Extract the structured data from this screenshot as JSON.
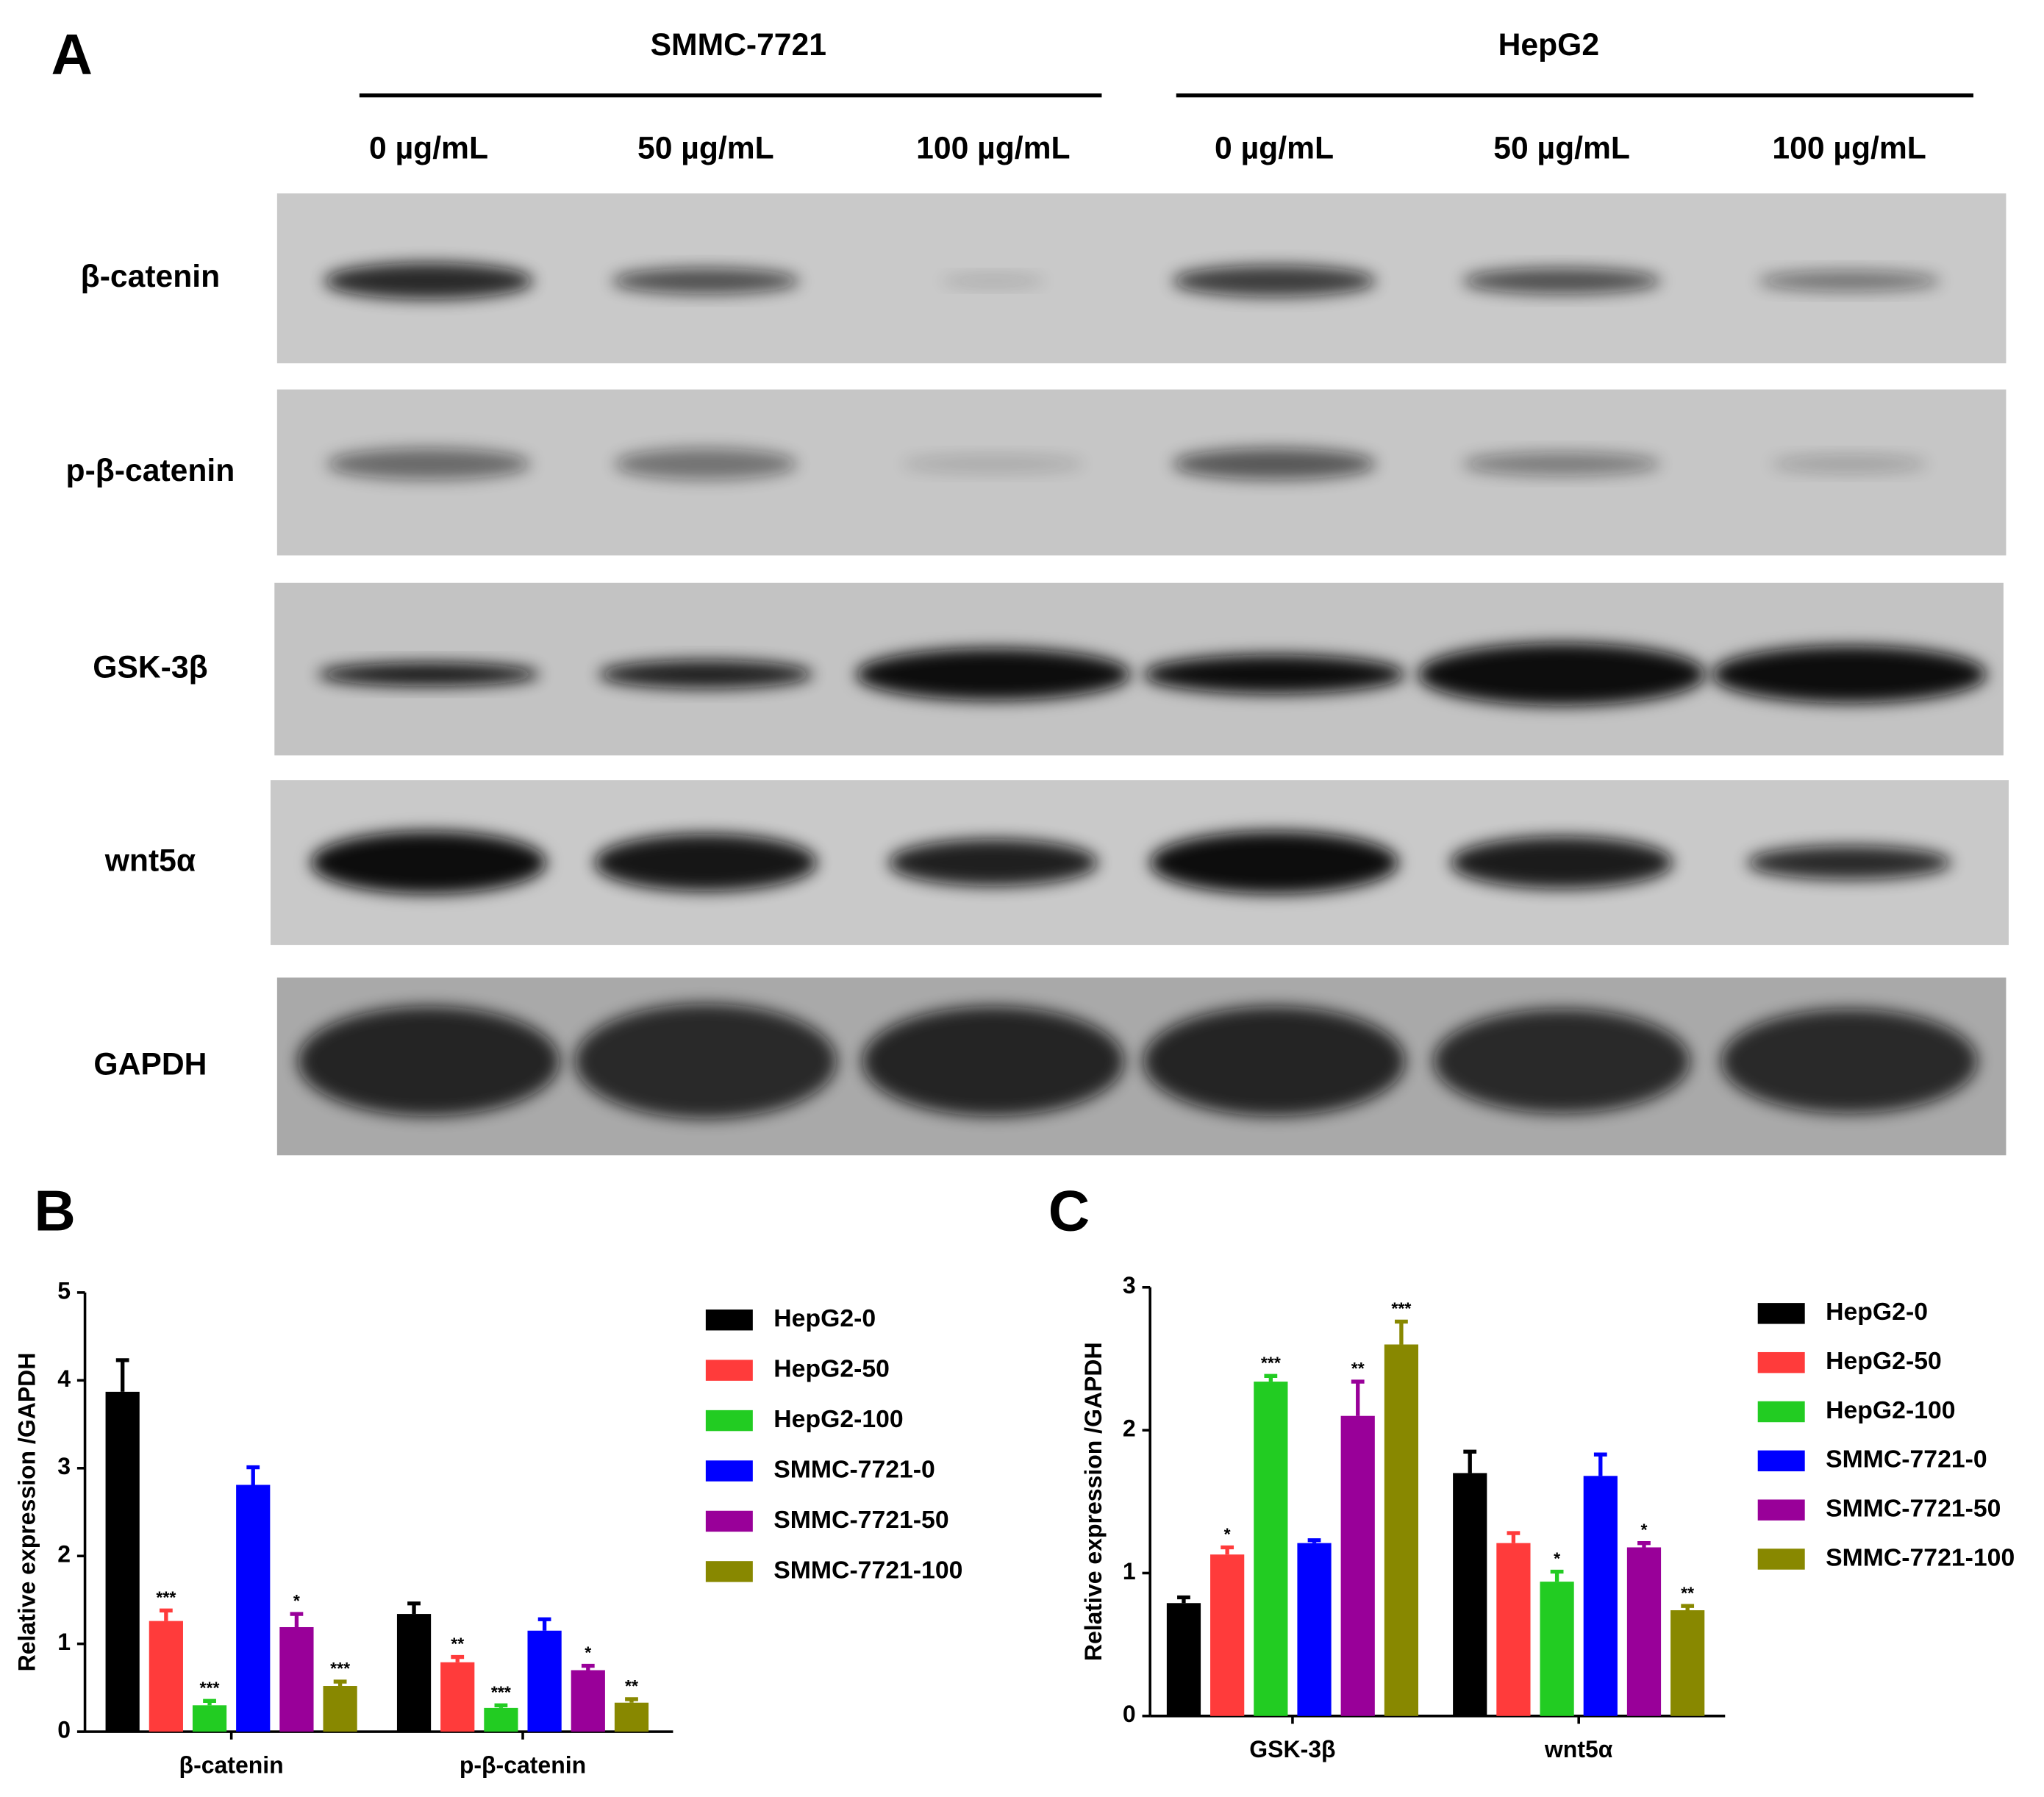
{
  "panels": {
    "a": "A",
    "b": "B",
    "c": "C"
  },
  "blot": {
    "groups": [
      "SMMC-7721",
      "HepG2"
    ],
    "lanes": [
      "0 µg/mL",
      "50 µg/mL",
      "100 µg/mL",
      "0 µg/mL",
      "50 µg/mL",
      "100 µg/mL"
    ],
    "proteins": [
      "β-catenin",
      "p-β-catenin",
      "GSK-3β",
      "wnt5α",
      "GAPDH"
    ]
  },
  "chart_data": [
    {
      "type": "bar",
      "ylabel": "Relative expression /GAPDH",
      "categories": [
        "β-catenin",
        "p-β-catenin"
      ],
      "ylim": [
        0,
        5
      ],
      "yticks": [
        0,
        1,
        2,
        3,
        4,
        5
      ],
      "series": [
        {
          "name": "HepG2-0",
          "color": "#000000",
          "values": [
            3.87,
            1.34
          ],
          "errors": [
            0.36,
            0.12
          ]
        },
        {
          "name": "HepG2-50",
          "color": "#ff3b3b",
          "values": [
            1.26,
            0.79
          ],
          "errors": [
            0.12,
            0.06
          ],
          "significance": [
            "***",
            "**"
          ]
        },
        {
          "name": "HepG2-100",
          "color": "#22cc22",
          "values": [
            0.3,
            0.27
          ],
          "errors": [
            0.05,
            0.03
          ],
          "significance": [
            "***",
            "***"
          ]
        },
        {
          "name": "SMMC-7721-0",
          "color": "#0000ff",
          "values": [
            2.81,
            1.15
          ],
          "errors": [
            0.2,
            0.13
          ]
        },
        {
          "name": "SMMC-7721-50",
          "color": "#990099",
          "values": [
            1.19,
            0.7
          ],
          "errors": [
            0.15,
            0.05
          ],
          "significance": [
            "*",
            "*"
          ]
        },
        {
          "name": "SMMC-7721-100",
          "color": "#888800",
          "values": [
            0.52,
            0.33
          ],
          "errors": [
            0.05,
            0.04
          ],
          "significance": [
            "***",
            "**"
          ]
        }
      ]
    },
    {
      "type": "bar",
      "ylabel": "Relative expression /GAPDH",
      "categories": [
        "GSK-3β",
        "wnt5α"
      ],
      "ylim": [
        0,
        3
      ],
      "yticks": [
        0,
        1,
        2,
        3
      ],
      "series": [
        {
          "name": "HepG2-0",
          "color": "#000000",
          "values": [
            0.79,
            1.7
          ],
          "errors": [
            0.04,
            0.15
          ]
        },
        {
          "name": "HepG2-50",
          "color": "#ff3b3b",
          "values": [
            1.13,
            1.21
          ],
          "errors": [
            0.05,
            0.07
          ],
          "significance": [
            "*",
            null
          ]
        },
        {
          "name": "HepG2-100",
          "color": "#22cc22",
          "values": [
            2.34,
            0.94
          ],
          "errors": [
            0.04,
            0.07
          ],
          "significance": [
            "***",
            "*"
          ]
        },
        {
          "name": "SMMC-7721-0",
          "color": "#0000ff",
          "values": [
            1.21,
            1.68
          ],
          "errors": [
            0.02,
            0.15
          ]
        },
        {
          "name": "SMMC-7721-50",
          "color": "#990099",
          "values": [
            2.1,
            1.18
          ],
          "errors": [
            0.24,
            0.03
          ],
          "significance": [
            "**",
            "*"
          ]
        },
        {
          "name": "SMMC-7721-100",
          "color": "#888800",
          "values": [
            2.6,
            0.74
          ],
          "errors": [
            0.16,
            0.03
          ],
          "significance": [
            "***",
            "**"
          ]
        }
      ]
    }
  ]
}
